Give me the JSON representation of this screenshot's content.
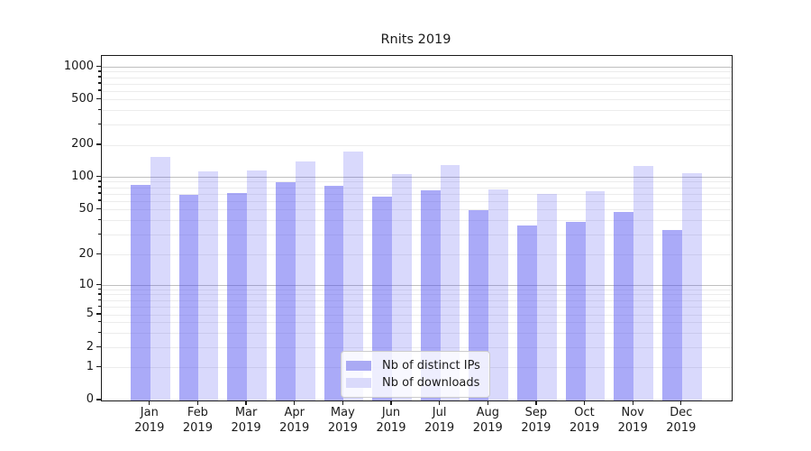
{
  "title": "Rnits 2019",
  "chart_data": {
    "type": "bar",
    "title": "Rnits 2019",
    "categories": [
      "Jan",
      "Feb",
      "Mar",
      "Apr",
      "May",
      "Jun",
      "Jul",
      "Aug",
      "Sep",
      "Oct",
      "Nov",
      "Dec"
    ],
    "category_year": "2019",
    "series": [
      {
        "name": "Nb of distinct IPs",
        "fill_rgba": "rgba(75,75,240,0.47)",
        "swatch_hex": "#aaaaf4",
        "values": [
          85,
          69,
          71,
          90,
          84,
          66,
          75,
          50,
          36,
          39,
          48,
          33
        ]
      },
      {
        "name": "Nb of downloads",
        "fill_rgba": "rgba(75,75,240,0.21)",
        "swatch_hex": "#dadafb",
        "values": [
          154,
          113,
          116,
          140,
          173,
          107,
          130,
          77,
          70,
          74,
          128,
          110
        ]
      }
    ],
    "y_axis": {
      "scale": "symlog",
      "range": [
        0,
        1000
      ],
      "labeled_ticks": [
        0,
        1,
        2,
        5,
        10,
        20,
        50,
        100,
        200,
        500,
        1000
      ],
      "major_grid_values": [
        10,
        100,
        1000
      ],
      "minor_grid_values": [
        1,
        2,
        3,
        4,
        5,
        6,
        7,
        8,
        9,
        20,
        30,
        40,
        50,
        60,
        70,
        80,
        90,
        200,
        300,
        400,
        500,
        600,
        700,
        800,
        900
      ],
      "minor_tick_values": [
        3,
        4,
        6,
        7,
        8,
        9,
        30,
        40,
        60,
        70,
        80,
        90,
        300,
        400,
        600,
        700,
        800,
        900
      ]
    },
    "grid": true,
    "legend_position": "lower-center",
    "colors": {
      "bar_dark": "#aaaaf4",
      "bar_light": "#dadafb",
      "grid_major": "#bfbfbf",
      "grid_minor": "#ececec",
      "axis": "#1a1a1a"
    }
  }
}
